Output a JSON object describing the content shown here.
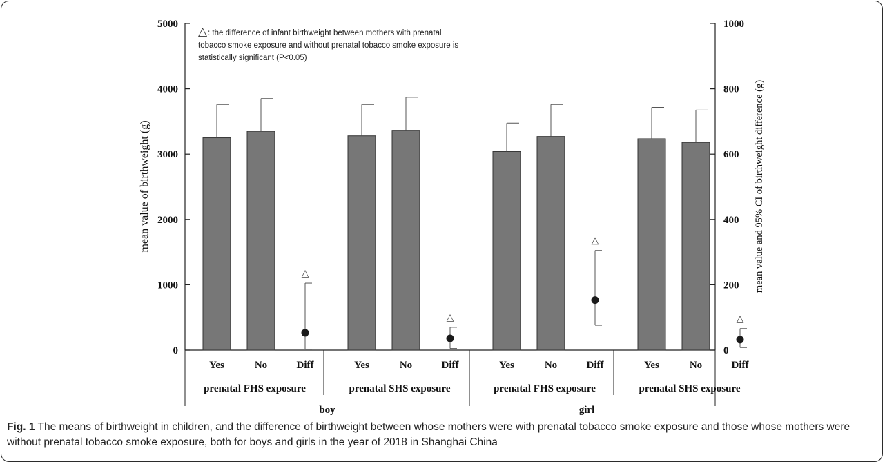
{
  "chart_data": {
    "type": "bar",
    "ylabel_left": "mean value of birthweight  (g)",
    "ylabel_right": "mean value and 95% CI of birthweight difference (g)",
    "left_axis": {
      "ylim": [
        0,
        5000
      ],
      "ticks": [
        "0",
        "1000",
        "2000",
        "3000",
        "4000",
        "5000"
      ]
    },
    "right_axis": {
      "ylim": [
        0,
        1000
      ],
      "ticks": [
        "0",
        "200",
        "400",
        "600",
        "800",
        "1000"
      ]
    },
    "annotation": {
      "symbol": "△",
      "lines": [
        ": the difference of infant birthweight between mothers with prenatal",
        "tobacco smoke exposure and without prenatal tobacco smoke exposure is",
        "statistically significant (P<0.05)"
      ]
    },
    "groups": [
      {
        "sex": "boy",
        "subgroups": [
          {
            "label": "prenatal FHS exposure",
            "bars": [
              {
                "category": "Yes",
                "mean": 3250,
                "error_upper": 3760
              },
              {
                "category": "No",
                "mean": 3350,
                "error_upper": 3850
              }
            ],
            "diff": {
              "category": "Diff",
              "mean": 53,
              "ci": [
                3,
                205
              ],
              "significant": true
            }
          },
          {
            "label": "prenatal SHS exposure",
            "bars": [
              {
                "category": "Yes",
                "mean": 3280,
                "error_upper": 3760
              },
              {
                "category": "No",
                "mean": 3365,
                "error_upper": 3870
              }
            ],
            "diff": {
              "category": "Diff",
              "mean": 36,
              "ci": [
                5,
                70
              ],
              "significant": true
            }
          }
        ]
      },
      {
        "sex": "girl",
        "subgroups": [
          {
            "label": "prenatal FHS exposure",
            "bars": [
              {
                "category": "Yes",
                "mean": 3040,
                "error_upper": 3475
              },
              {
                "category": "No",
                "mean": 3270,
                "error_upper": 3760
              }
            ],
            "diff": {
              "category": "Diff",
              "mean": 153,
              "ci": [
                76,
                305
              ],
              "significant": true
            }
          },
          {
            "label": "prenatal SHS exposure",
            "bars": [
              {
                "category": "Yes",
                "mean": 3235,
                "error_upper": 3715
              },
              {
                "category": "No",
                "mean": 3180,
                "error_upper": 3675
              }
            ],
            "diff": {
              "category": "Diff",
              "mean": 32,
              "ci": [
                8,
                66
              ],
              "significant": true
            }
          }
        ]
      }
    ]
  },
  "caption": {
    "label": "Fig. 1",
    "text": " The means of birthweight in children, and the difference of birthweight between whose mothers were with prenatal tobacco smoke exposure and those whose mothers were without prenatal tobacco smoke exposure, both for boys and girls in the year of 2018 in Shanghai China"
  },
  "colors": {
    "bar_fill": "#777777",
    "bar_stroke": "#333333",
    "axis": "#222222",
    "dot": "#1a1a1a"
  }
}
